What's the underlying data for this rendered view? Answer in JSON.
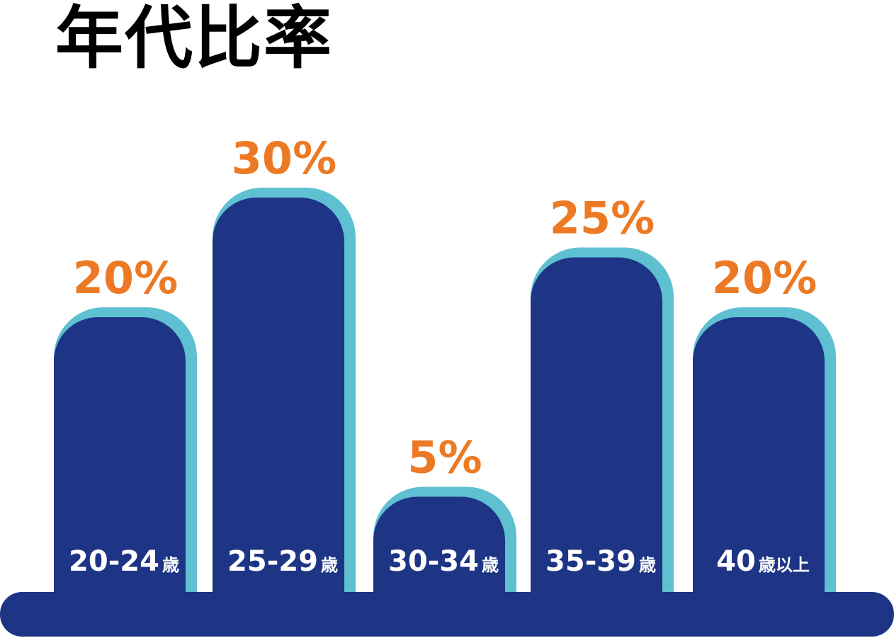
{
  "chart_data": {
    "type": "bar",
    "title": "年代比率",
    "categories": [
      {
        "main": "20-24",
        "suffix": "歳"
      },
      {
        "main": "25-29",
        "suffix": "歳"
      },
      {
        "main": "30-34",
        "suffix": "歳"
      },
      {
        "main": "35-39",
        "suffix": "歳"
      },
      {
        "main": "40",
        "suffix": "歳以上"
      }
    ],
    "values": [
      20,
      30,
      5,
      25,
      20
    ],
    "value_labels": [
      "20%",
      "30%",
      "5%",
      "25%",
      "20%"
    ],
    "ylim": [
      0,
      30
    ],
    "grid": false,
    "legend": "none",
    "colors": {
      "bar": "#1e3586",
      "bar_shadow": "#5ec0d1",
      "value_label": "#ec7a25",
      "category_label": "#ffffff",
      "baseline": "#1e3586",
      "title": "#000000"
    }
  }
}
